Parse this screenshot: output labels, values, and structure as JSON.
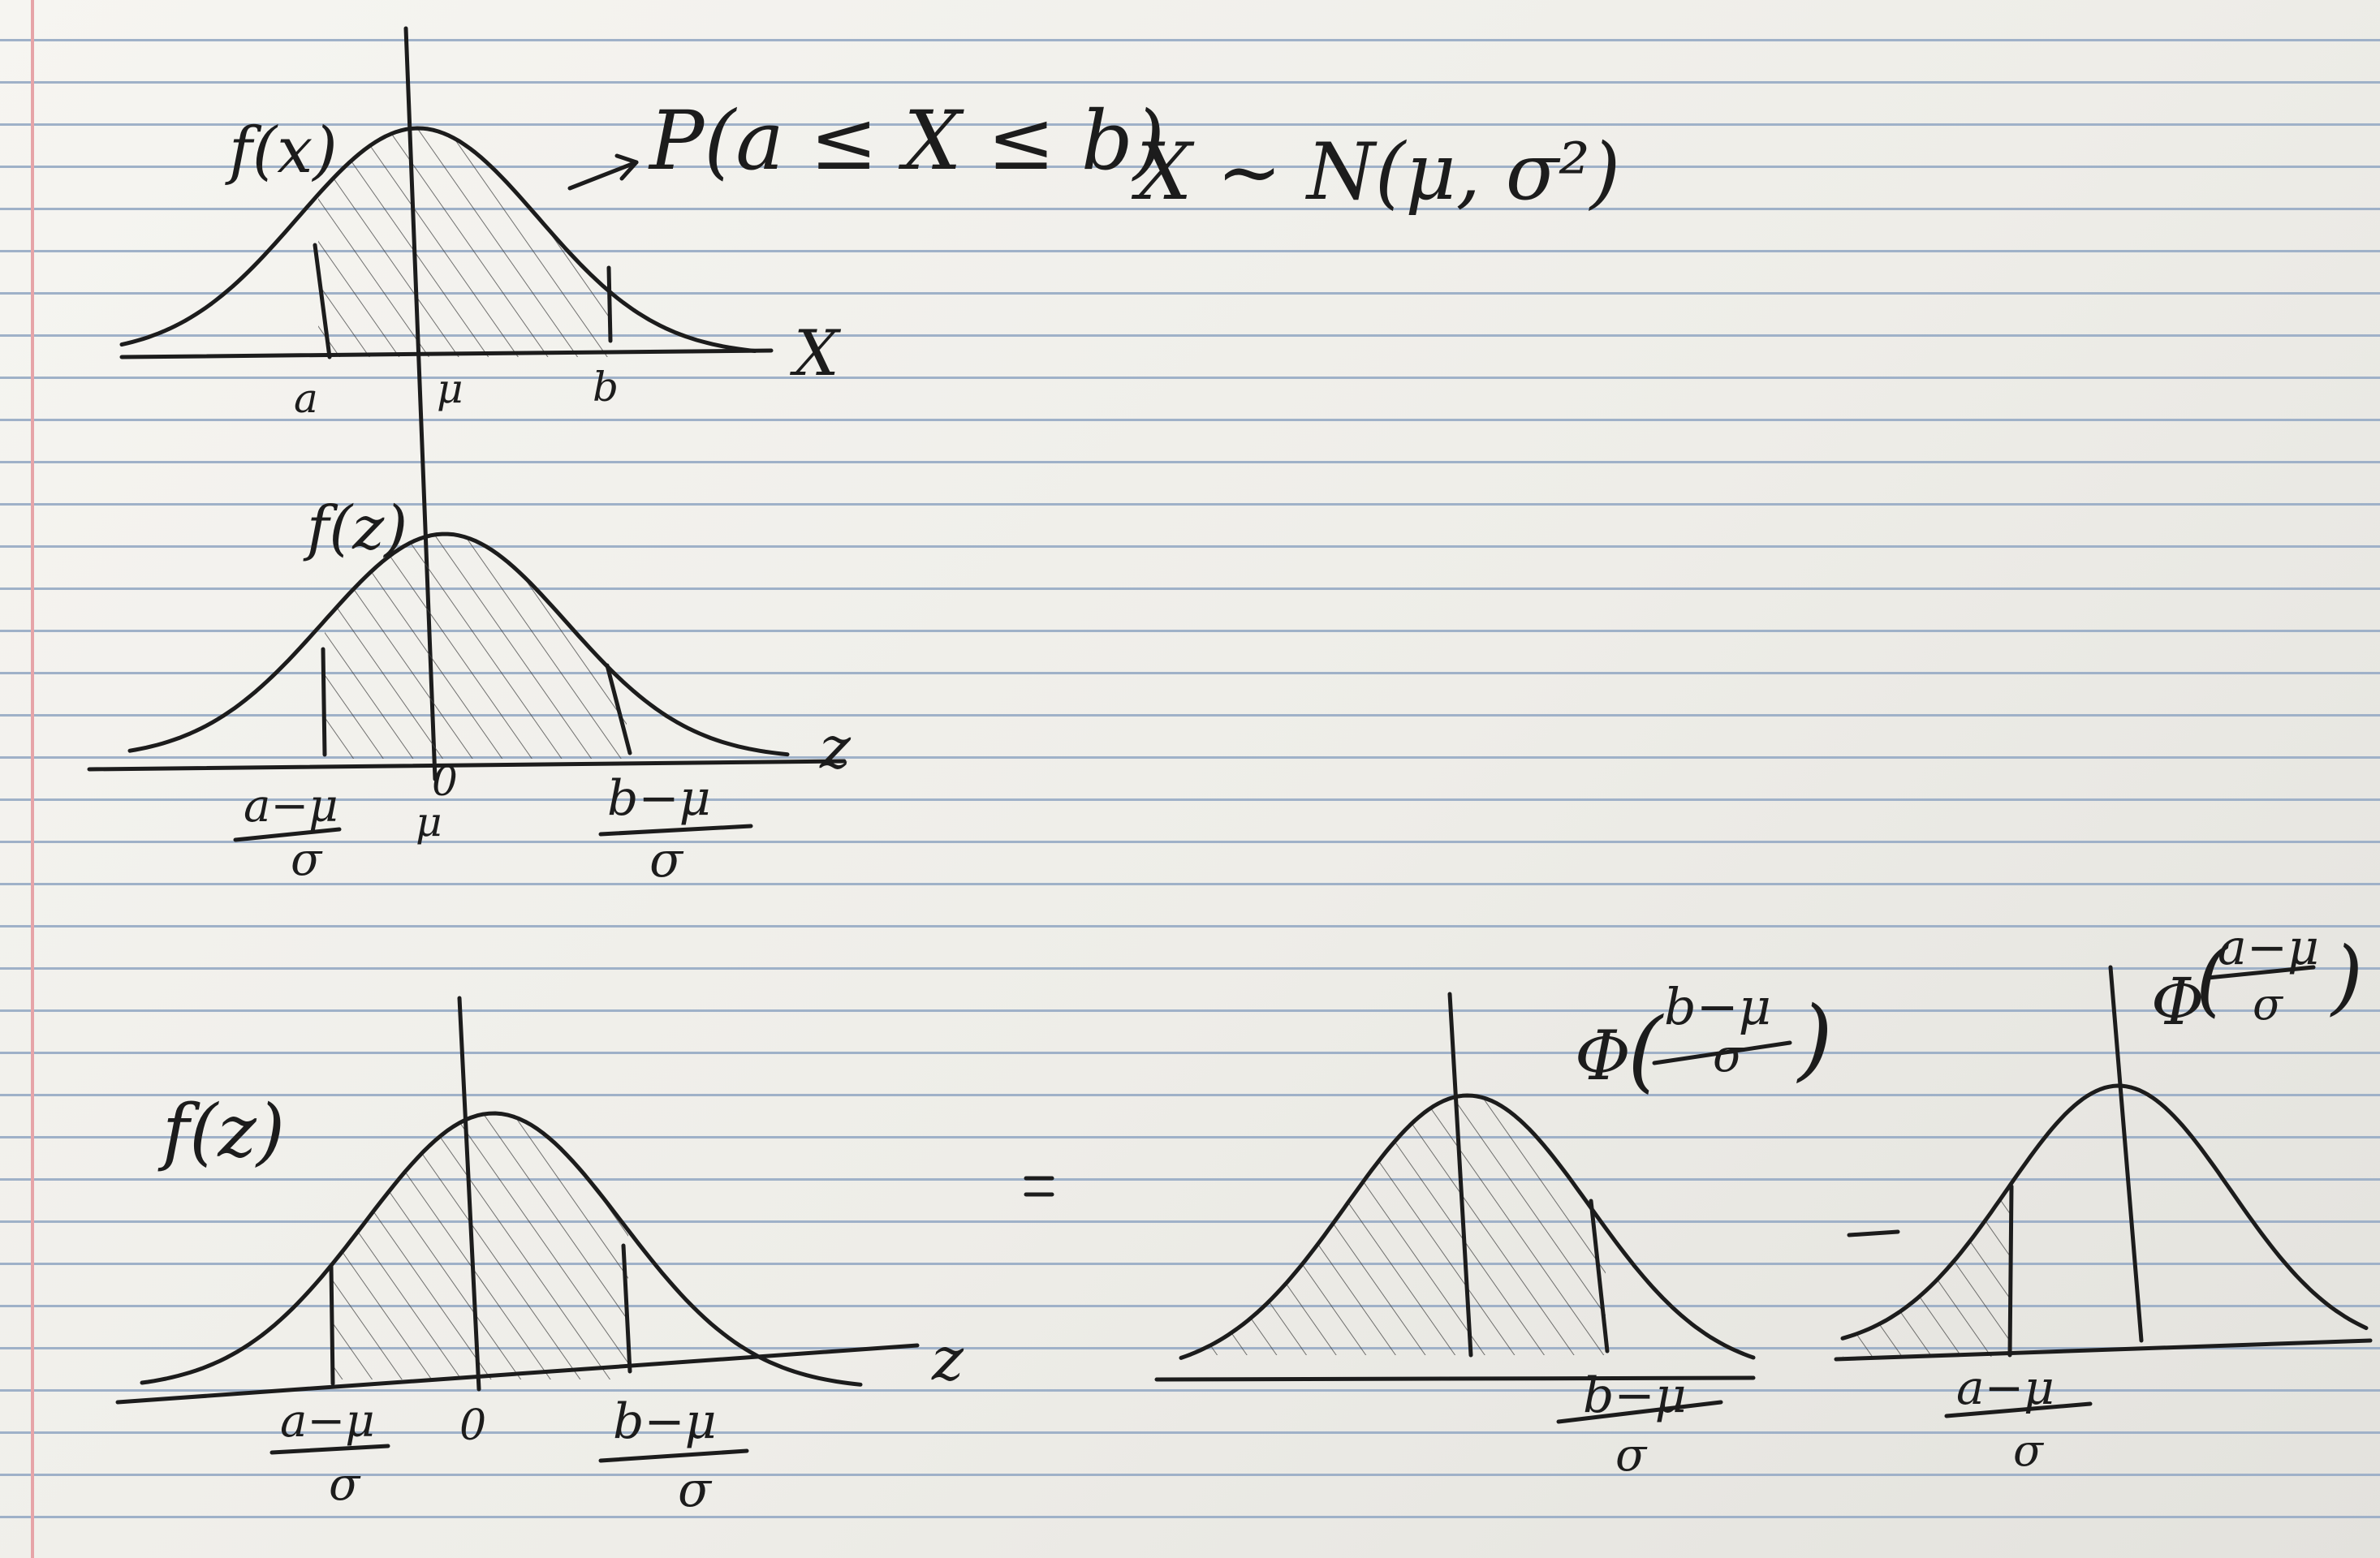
{
  "header": {
    "prob_label": "P(a ≤ X ≤ b)",
    "arrow": "→",
    "dist_label": "X ~ N(μ, σ²)"
  },
  "diagram1": {
    "y_label": "f(x)",
    "x_axis": "X",
    "ticks": [
      "a",
      "μ",
      "b"
    ]
  },
  "diagram2": {
    "y_label": "f(z)",
    "x_axis": "z",
    "left_num": "a−μ",
    "left_den": "σ",
    "center_top": "0",
    "center_bottom": "μ",
    "right_num": "b−μ",
    "right_den": "σ"
  },
  "diagram3": {
    "y_label": "f(z)",
    "x_axis": "z",
    "left_num": "a−μ",
    "left_den": "σ",
    "center": "0",
    "right_num": "b−μ",
    "right_den": "σ"
  },
  "operators": {
    "equals": "=",
    "minus": "−"
  },
  "diagram4": {
    "phi": "Φ",
    "phi_num": "b−μ",
    "phi_den": "σ",
    "tick_num": "b−μ",
    "tick_den": "σ"
  },
  "diagram5": {
    "phi": "Φ",
    "phi_num": "a−μ",
    "phi_den": "σ",
    "tick_num": "a−μ",
    "tick_den": "σ"
  }
}
